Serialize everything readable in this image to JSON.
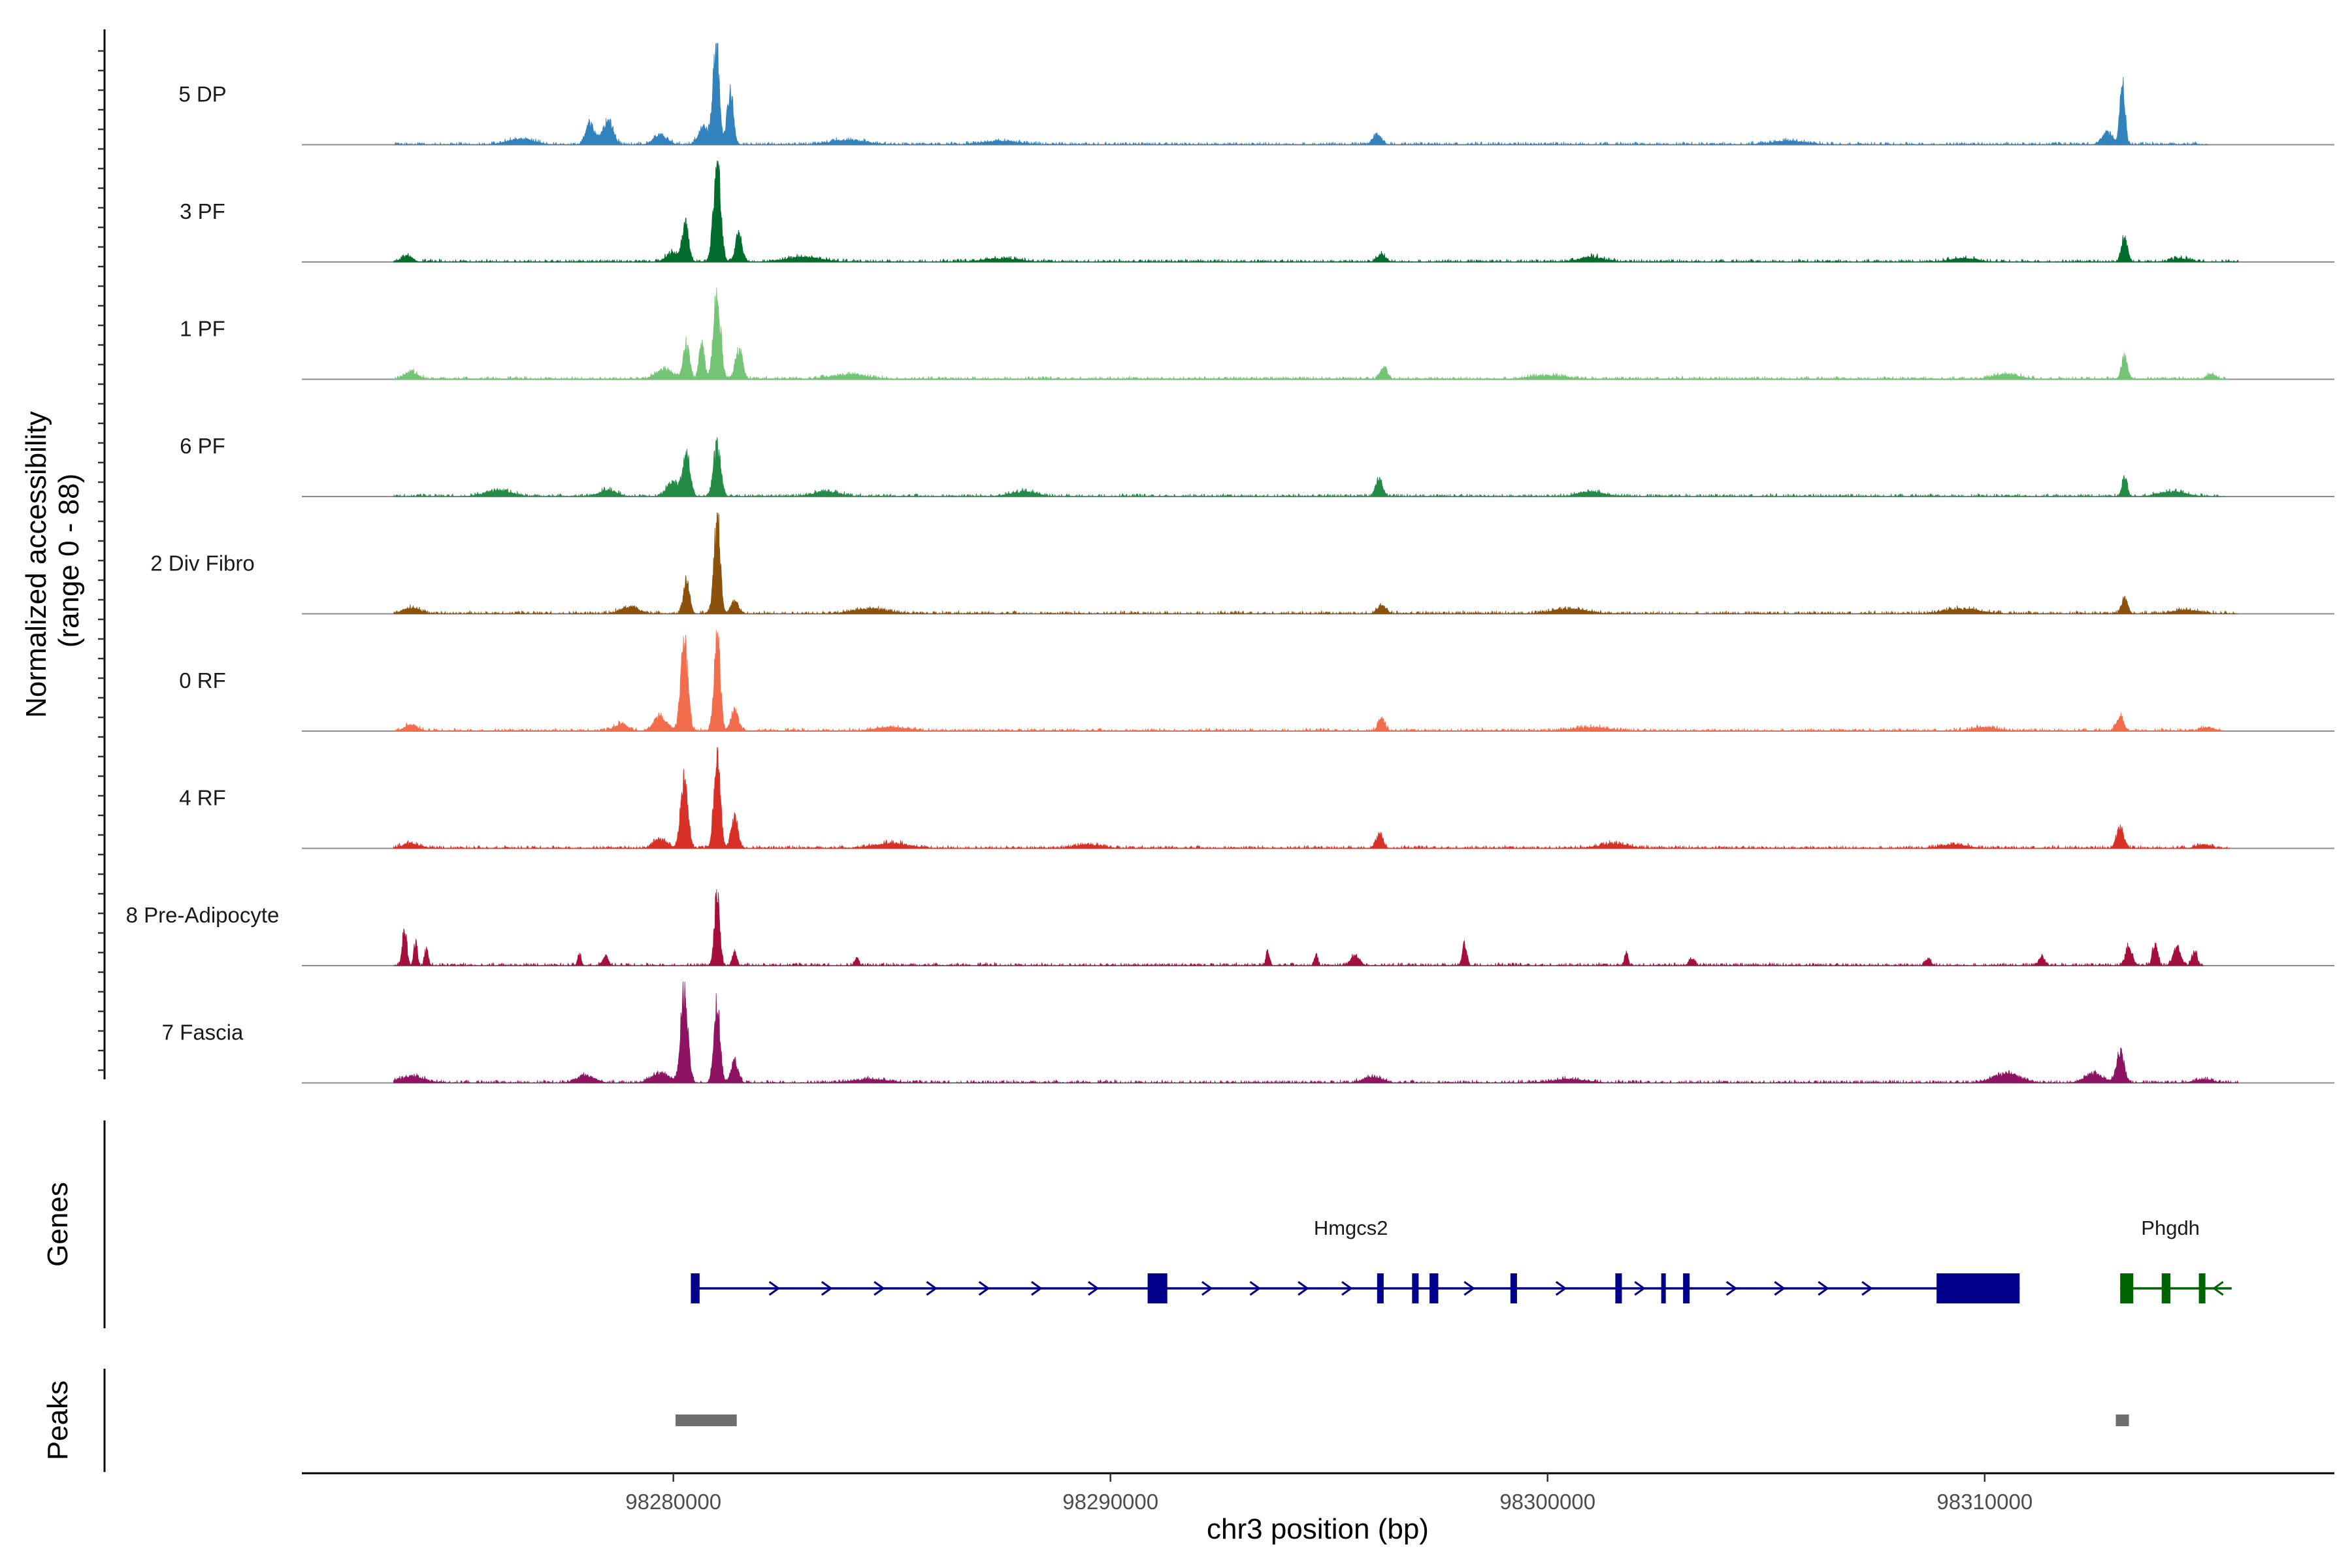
{
  "chart_data": {
    "type": "area",
    "title": "",
    "xlabel": "chr3 position (bp)",
    "ylabel": "Normalized accessibility\n(range 0 - 88)",
    "ylabel_lines": [
      "Normalized accessibility",
      "(range 0 - 88)"
    ],
    "ylim": [
      0,
      88
    ],
    "xlim": [
      98271500,
      98318000
    ],
    "x_ticks": [
      98280000,
      98290000,
      98300000,
      98310000
    ],
    "x_tick_labels": [
      "98280000",
      "98290000",
      "98300000",
      "98310000"
    ],
    "chromosome": "chr3",
    "panel_labels": {
      "genes": "Genes",
      "peaks": "Peaks"
    },
    "series": [
      {
        "name": "5 DP",
        "color": "#3182bd",
        "peaks": [
          [
            98280980,
            85,
            70
          ],
          [
            98281300,
            45,
            70
          ],
          [
            98280700,
            15,
            120
          ],
          [
            98278500,
            20,
            120
          ],
          [
            98278100,
            18,
            100
          ],
          [
            98279700,
            8,
            150
          ],
          [
            98313150,
            50,
            60
          ],
          [
            98312800,
            10,
            120
          ],
          [
            98296100,
            8,
            100
          ],
          [
            98276500,
            5,
            300
          ],
          [
            98284000,
            4,
            400
          ],
          [
            98287500,
            3,
            400
          ],
          [
            98305500,
            3,
            400
          ]
        ],
        "range": [
          98273600,
          98315100
        ]
      },
      {
        "name": "3 PF",
        "color": "#006d2c",
        "peaks": [
          [
            98281000,
            85,
            80
          ],
          [
            98280280,
            30,
            70
          ],
          [
            98281500,
            22,
            80
          ],
          [
            98280000,
            8,
            150
          ],
          [
            98273900,
            5,
            120
          ],
          [
            98313200,
            20,
            70
          ],
          [
            98296200,
            6,
            100
          ],
          [
            98283000,
            4,
            400
          ],
          [
            98301000,
            4,
            300
          ],
          [
            98309500,
            3,
            300
          ],
          [
            98287500,
            3,
            400
          ],
          [
            98314500,
            3,
            200
          ]
        ],
        "range": [
          98273600,
          98315800
        ]
      },
      {
        "name": "1 PF",
        "color": "#74c476",
        "peaks": [
          [
            98281000,
            70,
            80
          ],
          [
            98280300,
            28,
            70
          ],
          [
            98280650,
            30,
            60
          ],
          [
            98281500,
            25,
            80
          ],
          [
            98279800,
            8,
            200
          ],
          [
            98313200,
            18,
            70
          ],
          [
            98296250,
            10,
            80
          ],
          [
            98274000,
            6,
            150
          ],
          [
            98284000,
            4,
            400
          ],
          [
            98310500,
            4,
            300
          ],
          [
            98315200,
            4,
            100
          ],
          [
            98300000,
            3,
            400
          ]
        ],
        "range": [
          98273600,
          98315600
        ]
      },
      {
        "name": "6 PF",
        "color": "#238b45",
        "peaks": [
          [
            98281000,
            45,
            80
          ],
          [
            98280300,
            35,
            80
          ],
          [
            98280000,
            12,
            150
          ],
          [
            98296150,
            14,
            80
          ],
          [
            98313200,
            16,
            60
          ],
          [
            98276000,
            5,
            300
          ],
          [
            98278500,
            5,
            200
          ],
          [
            98283500,
            4,
            300
          ],
          [
            98288000,
            4,
            300
          ],
          [
            98301000,
            4,
            300
          ],
          [
            98314300,
            4,
            300
          ]
        ],
        "range": [
          98273600,
          98315500
        ]
      },
      {
        "name": "2 Div Fibro",
        "color": "#8c510a",
        "peaks": [
          [
            98281000,
            80,
            70
          ],
          [
            98280300,
            28,
            70
          ],
          [
            98281400,
            12,
            80
          ],
          [
            98279000,
            6,
            200
          ],
          [
            98313200,
            14,
            70
          ],
          [
            98296200,
            7,
            100
          ],
          [
            98274000,
            5,
            200
          ],
          [
            98284500,
            4,
            400
          ],
          [
            98300500,
            4,
            400
          ],
          [
            98309500,
            4,
            400
          ],
          [
            98314600,
            3,
            300
          ]
        ],
        "range": [
          98273600,
          98315800
        ]
      },
      {
        "name": "0 RF",
        "color": "#f16d4b",
        "peaks": [
          [
            98280250,
            75,
            80
          ],
          [
            98281000,
            82,
            70
          ],
          [
            98281400,
            18,
            80
          ],
          [
            98279700,
            12,
            150
          ],
          [
            98278800,
            6,
            150
          ],
          [
            98296200,
            10,
            80
          ],
          [
            98313100,
            12,
            80
          ],
          [
            98274000,
            5,
            150
          ],
          [
            98285000,
            3,
            400
          ],
          [
            98301000,
            3,
            400
          ],
          [
            98310000,
            3,
            300
          ],
          [
            98315100,
            3,
            150
          ]
        ],
        "range": [
          98273600,
          98315500
        ]
      },
      {
        "name": "4 RF",
        "color": "#d73027",
        "peaks": [
          [
            98280250,
            60,
            80
          ],
          [
            98281000,
            84,
            70
          ],
          [
            98281400,
            25,
            80
          ],
          [
            98279700,
            8,
            150
          ],
          [
            98296150,
            12,
            80
          ],
          [
            98313100,
            18,
            80
          ],
          [
            98274000,
            4,
            200
          ],
          [
            98285000,
            4,
            400
          ],
          [
            98289500,
            3,
            300
          ],
          [
            98301500,
            4,
            300
          ],
          [
            98309300,
            3,
            300
          ],
          [
            98315000,
            3,
            150
          ]
        ],
        "range": [
          98273600,
          98315600
        ]
      },
      {
        "name": "8 Pre-Adipocyte",
        "color": "#a50f3d",
        "peaks": [
          [
            98273850,
            32,
            50
          ],
          [
            98274100,
            20,
            40
          ],
          [
            98274350,
            14,
            40
          ],
          [
            98277850,
            10,
            40
          ],
          [
            98278450,
            8,
            60
          ],
          [
            98281000,
            58,
            60
          ],
          [
            98281400,
            12,
            50
          ],
          [
            98284200,
            8,
            40
          ],
          [
            98293600,
            12,
            40
          ],
          [
            98294700,
            10,
            40
          ],
          [
            98295600,
            8,
            100
          ],
          [
            98298100,
            20,
            50
          ],
          [
            98301800,
            12,
            40
          ],
          [
            98303300,
            6,
            60
          ],
          [
            98308700,
            6,
            60
          ],
          [
            98311300,
            8,
            60
          ],
          [
            98313300,
            16,
            80
          ],
          [
            98313900,
            18,
            60
          ],
          [
            98314400,
            16,
            80
          ],
          [
            98314800,
            12,
            60
          ]
        ],
        "range": [
          98273600,
          98315000
        ]
      },
      {
        "name": "7 Fascia",
        "color": "#8e1463",
        "peaks": [
          [
            98280250,
            78,
            80
          ],
          [
            98281000,
            66,
            70
          ],
          [
            98281400,
            18,
            80
          ],
          [
            98279700,
            8,
            200
          ],
          [
            98278000,
            6,
            200
          ],
          [
            98313100,
            25,
            90
          ],
          [
            98312500,
            8,
            200
          ],
          [
            98310500,
            8,
            300
          ],
          [
            98274000,
            5,
            300
          ],
          [
            98284500,
            3,
            400
          ],
          [
            98296000,
            5,
            200
          ],
          [
            98300500,
            3,
            400
          ],
          [
            98315000,
            3,
            200
          ]
        ],
        "range": [
          98273600,
          98315800
        ]
      }
    ],
    "genes": [
      {
        "name": "Hmgcs2",
        "strand": "+",
        "color": "#00008b",
        "start": 98280400,
        "end": 98310800,
        "exons": [
          [
            98280400,
            98280600
          ],
          [
            98290850,
            98291300
          ],
          [
            98296100,
            98296250
          ],
          [
            98296900,
            98297050
          ],
          [
            98297300,
            98297500
          ],
          [
            98299150,
            98299300
          ],
          [
            98301550,
            98301700
          ],
          [
            98302600,
            98302700
          ],
          [
            98303100,
            98303250
          ],
          [
            98308900,
            98310800
          ]
        ],
        "arrows": [
          98282300,
          98283500,
          98284700,
          98285900,
          98287100,
          98288300,
          98289600,
          98292200,
          98293300,
          98294400,
          98295400,
          98298200,
          98300300,
          98302100,
          98304200,
          98305300,
          98306300,
          98307300
        ]
      },
      {
        "name": "Phgdh",
        "strand": "-",
        "color": "#006400",
        "start": 98313100,
        "end": 98315650,
        "exons": [
          [
            98313100,
            98313400
          ],
          [
            98314050,
            98314250
          ],
          [
            98314900,
            98315050
          ]
        ],
        "arrows": [
          98315350
        ]
      }
    ],
    "peaks_track": [
      {
        "start": 98280050,
        "end": 98281450
      },
      {
        "start": 98313000,
        "end": 98313300
      }
    ]
  }
}
